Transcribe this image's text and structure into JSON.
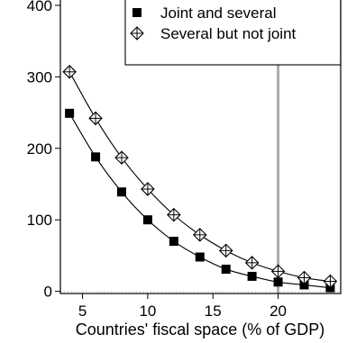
{
  "chart_data": {
    "type": "line",
    "title": "",
    "xlabel": "Countries' fiscal space (% of GDP)",
    "ylabel": "",
    "xlim": [
      3.3,
      24.8
    ],
    "ylim": [
      -3,
      410
    ],
    "x_ticks": [
      5,
      10,
      15,
      20
    ],
    "y_ticks": [
      0,
      100,
      200,
      300,
      400
    ],
    "x": [
      4,
      6,
      8,
      10,
      12,
      14,
      16,
      18,
      20,
      22,
      24
    ],
    "series": [
      {
        "name": "Joint and several",
        "marker": "filled-square",
        "connected": true,
        "values": [
          249,
          188,
          139,
          100,
          70,
          48,
          31,
          21,
          13,
          9,
          5
        ]
      },
      {
        "name": "Several but not joint",
        "marker": "crossed-diamond",
        "connected": true,
        "values": [
          307,
          242,
          187,
          143,
          107,
          79,
          57,
          40,
          28,
          19,
          14
        ]
      }
    ],
    "reference_lines": [
      {
        "orientation": "vertical",
        "x": 20,
        "color": "#aaaaaa"
      },
      {
        "orientation": "horizontal",
        "y": 0,
        "style": "dotted",
        "color": "#bbbbbb"
      }
    ],
    "legend_position": "top-right",
    "grid": false
  }
}
